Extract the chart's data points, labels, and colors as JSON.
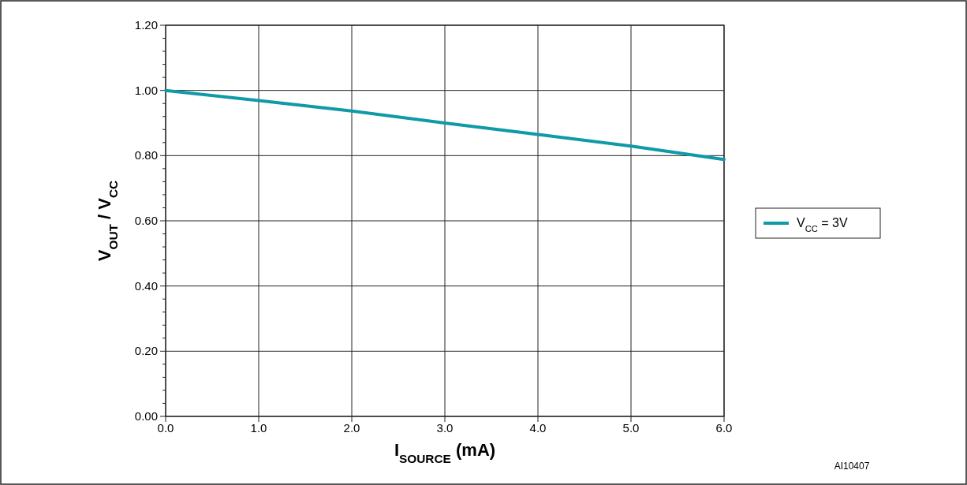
{
  "chart_data": {
    "type": "line",
    "xlabel": "I$_{SOURCE}$ (mA)",
    "ylabel": "V$_{OUT}$ / V$_{CC}$",
    "x": [
      0,
      1,
      2,
      3,
      4,
      5,
      6
    ],
    "series": [
      {
        "name": "V$_{CC}$ = 3V",
        "color": "#0e9aa7",
        "values": [
          1.0,
          0.969,
          0.937,
          0.9,
          0.865,
          0.829,
          0.788
        ]
      }
    ],
    "xlim": [
      0,
      6
    ],
    "xticks": [
      {
        "value": 0,
        "label": "0.0"
      },
      {
        "value": 1,
        "label": "1.0"
      },
      {
        "value": 2,
        "label": "2.0"
      },
      {
        "value": 3,
        "label": "3.0"
      },
      {
        "value": 4,
        "label": "4.0"
      },
      {
        "value": 5,
        "label": "5.0"
      },
      {
        "value": 6,
        "label": "6.0"
      }
    ],
    "ylim": [
      0,
      1.2
    ],
    "yticks": [
      {
        "value": 0,
        "label": "0.00"
      },
      {
        "value": 0.04,
        "label": null
      },
      {
        "value": 0.08,
        "label": null
      },
      {
        "value": 0.12,
        "label": null
      },
      {
        "value": 0.16,
        "label": null
      },
      {
        "value": 0.2,
        "label": "0.20"
      },
      {
        "value": 0.24,
        "label": null
      },
      {
        "value": 0.28,
        "label": null
      },
      {
        "value": 0.32,
        "label": null
      },
      {
        "value": 0.36,
        "label": null
      },
      {
        "value": 0.4,
        "label": "0.40"
      },
      {
        "value": 0.44,
        "label": null
      },
      {
        "value": 0.48,
        "label": null
      },
      {
        "value": 0.52,
        "label": null
      },
      {
        "value": 0.56,
        "label": null
      },
      {
        "value": 0.6,
        "label": "0.60"
      },
      {
        "value": 0.64,
        "label": null
      },
      {
        "value": 0.68,
        "label": null
      },
      {
        "value": 0.72,
        "label": null
      },
      {
        "value": 0.76,
        "label": null
      },
      {
        "value": 0.8,
        "label": "0.80"
      },
      {
        "value": 0.84,
        "label": null
      },
      {
        "value": 0.88,
        "label": null
      },
      {
        "value": 0.92,
        "label": null
      },
      {
        "value": 0.96,
        "label": null
      },
      {
        "value": 1.0,
        "label": "1.00"
      },
      {
        "value": 1.04,
        "label": null
      },
      {
        "value": 1.08,
        "label": null
      },
      {
        "value": 1.12,
        "label": null
      },
      {
        "value": 1.16,
        "label": null
      },
      {
        "value": 1.2,
        "label": "1.20"
      }
    ],
    "grid": true,
    "legend": "right",
    "line_style": "solid",
    "marker": "none",
    "annotations": [
      "AI10407"
    ]
  }
}
